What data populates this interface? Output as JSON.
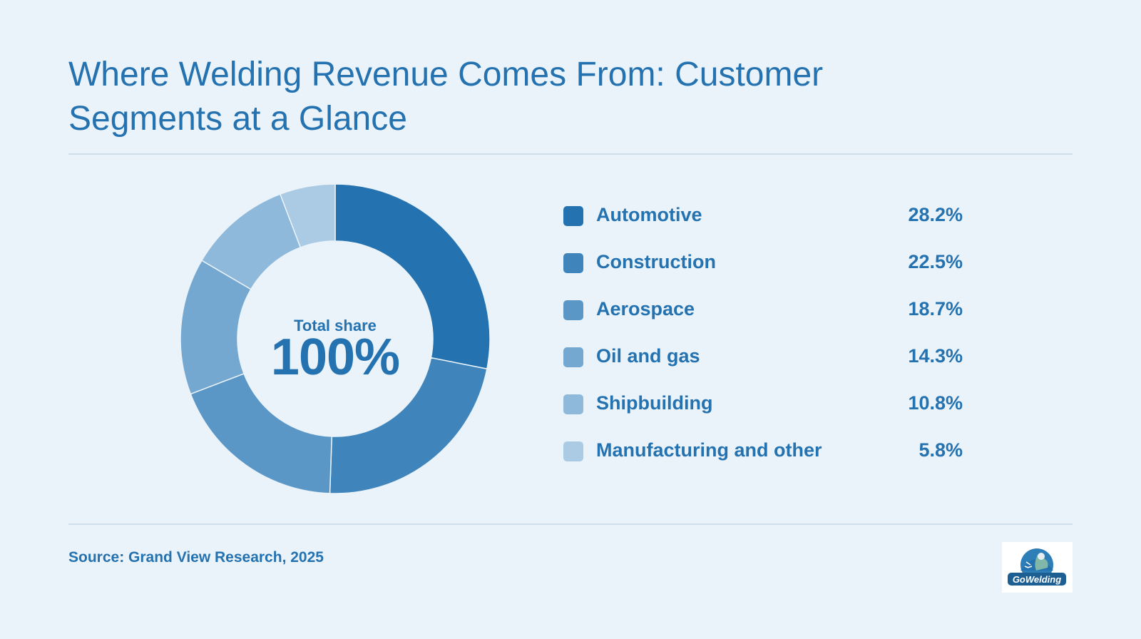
{
  "header": {
    "title": "Where Welding Revenue Comes From: Customer Segments at a Glance"
  },
  "chart_data": {
    "type": "pie",
    "donut": true,
    "categories": [
      "Automotive",
      "Construction",
      "Aerospace",
      "Oil and gas",
      "Shipbuilding",
      "Manufacturing and other"
    ],
    "values": [
      28.2,
      22.5,
      18.7,
      14.3,
      10.8,
      5.8
    ],
    "value_labels": [
      "28.2%",
      "22.5%",
      "18.7%",
      "14.3%",
      "10.8%",
      "5.8%"
    ],
    "colors": [
      "#2472b0",
      "#3f85bb",
      "#5a97c6",
      "#74a8d0",
      "#8fb9da",
      "#abcae3"
    ],
    "center": {
      "label": "Total share",
      "value": "100%"
    },
    "legend_position": "right"
  },
  "footer": {
    "source": "Source: Grand View Research, 2025",
    "logo_text": "GoWelding"
  }
}
